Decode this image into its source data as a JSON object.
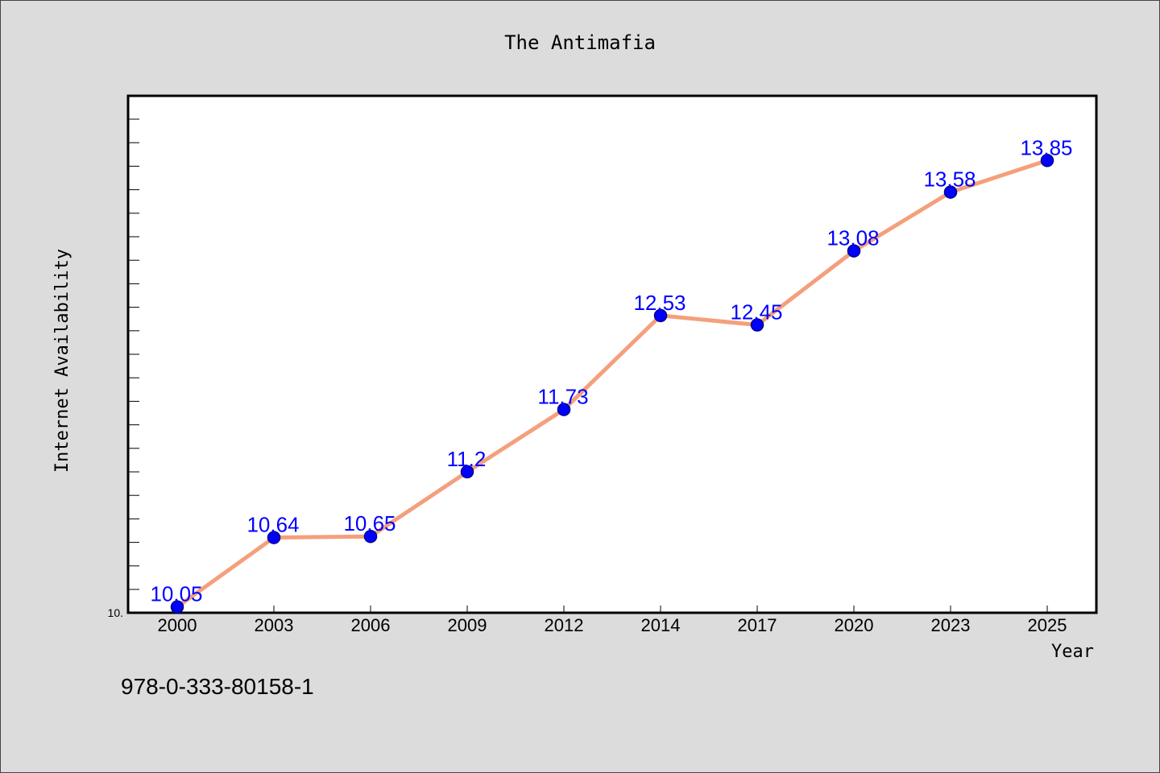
{
  "chart_data": {
    "type": "line",
    "title": "The Antimafia",
    "xlabel": "Year",
    "ylabel": "Internet Availability",
    "categories": [
      "2000",
      "2003",
      "2006",
      "2009",
      "2012",
      "2014",
      "2017",
      "2020",
      "2023",
      "2025"
    ],
    "series": [
      {
        "values": [
          10.05,
          10.64,
          10.65,
          11.2,
          11.73,
          12.53,
          12.45,
          13.08,
          13.58,
          13.85
        ]
      }
    ],
    "data_labels": [
      "10.05",
      "10.64",
      "10.65",
      "11.2",
      "11.73",
      "12.53",
      "12.45",
      "13.08",
      "13.58",
      "13.85"
    ],
    "y_tick_label": "10.",
    "ylim": [
      10.0,
      14.4
    ],
    "grid": false,
    "colors": {
      "line": "#f4a07c",
      "marker": "#0000ff",
      "marker_edge": "#00008b",
      "label": "#0000ff",
      "plot_bg": "#ffffff",
      "page_bg": "#dcdcdc"
    }
  },
  "footer_text": "978-0-333-80158-1"
}
